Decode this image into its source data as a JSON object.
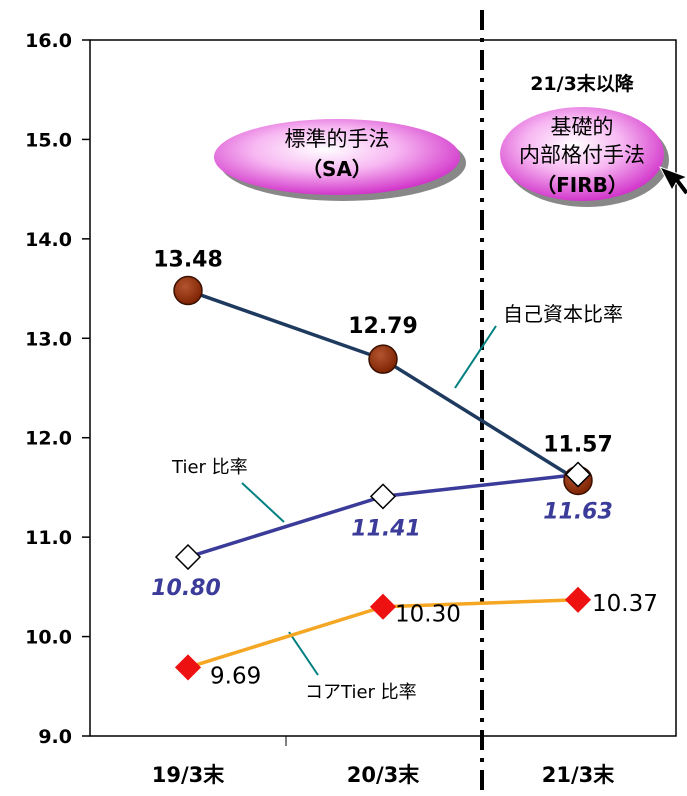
{
  "chart_data": {
    "type": "line",
    "title": "",
    "xlabel": "",
    "ylabel": "",
    "categories": [
      "19/3末",
      "20/3末",
      "21/3末"
    ],
    "ylim": [
      9.0,
      16.0
    ],
    "yticks": [
      "9.0",
      "10.0",
      "11.0",
      "12.0",
      "13.0",
      "14.0",
      "15.0",
      "16.0"
    ],
    "grid": false,
    "series": [
      {
        "name": "自己資本比率",
        "values": [
          13.48,
          12.79,
          11.57
        ],
        "labels": [
          "13.48",
          "12.79",
          "11.57"
        ],
        "color": "#1f3a5f",
        "marker": "circle",
        "marker_color": "#8b2500"
      },
      {
        "name": "Tier 比率",
        "values": [
          10.8,
          11.41,
          11.63
        ],
        "labels": [
          "10.80",
          "11.41",
          "11.63"
        ],
        "color": "#3b3b9a",
        "marker": "diamond",
        "marker_color": "#ffffff"
      },
      {
        "name": "コアTier 比率",
        "values": [
          9.69,
          10.3,
          10.37
        ],
        "labels": [
          "9.69",
          "10.30",
          "10.37"
        ],
        "color": "#f5a623",
        "marker": "diamond",
        "marker_color": "#ee1111"
      }
    ],
    "annotations": {
      "sa_line1": "標準的手法",
      "sa_line2": "（SA）",
      "firb_header": "21/3末以降",
      "firb_line1": "基礎的",
      "firb_line2": "内部格付手法",
      "firb_line3": "（FIRB）"
    }
  }
}
